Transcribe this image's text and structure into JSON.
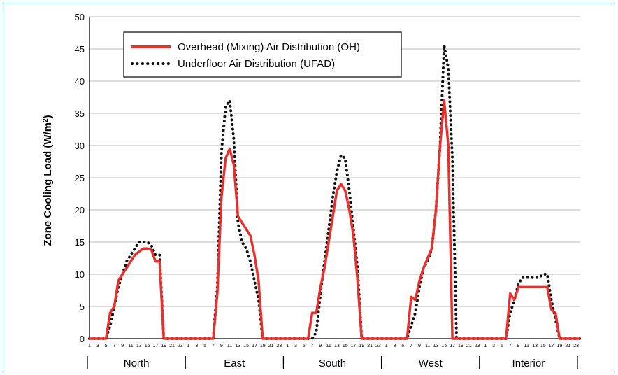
{
  "chart_data": {
    "type": "line",
    "ylabel_main": "Zone Cooling Load (W/m",
    "ylabel_sup": "2",
    "ylabel_end": ")",
    "ylim": [
      0,
      50
    ],
    "yticks": [
      0,
      5,
      10,
      15,
      20,
      25,
      30,
      35,
      40,
      45,
      50
    ],
    "grid": true,
    "legend_position": "top-left",
    "hour_labels": [
      "1",
      "3",
      "5",
      "7",
      "9",
      "11",
      "13",
      "15",
      "17",
      "19",
      "21",
      "23"
    ],
    "zones": [
      "North",
      "East",
      "South",
      "West",
      "Interior"
    ],
    "series": [
      {
        "name": "Overhead (Mixing) Air Distribution (OH)",
        "style": "solid",
        "color": "#e8312f",
        "values": [
          0,
          0,
          0,
          0,
          0,
          4,
          5,
          9,
          10,
          11,
          12,
          13,
          13.5,
          14,
          14,
          13.8,
          12,
          12,
          0,
          0,
          0,
          0,
          0,
          0,
          0,
          0,
          0,
          0,
          0,
          0,
          0,
          7,
          22,
          28,
          29.5,
          27,
          19,
          18,
          17,
          16,
          13,
          9,
          0,
          0,
          0,
          0,
          0,
          0,
          0,
          0,
          0,
          0,
          0,
          0,
          4,
          4,
          8,
          11,
          15,
          19,
          23,
          24,
          23,
          20,
          16,
          9,
          0,
          0,
          0,
          0,
          0,
          0,
          0,
          0,
          0,
          0,
          0,
          0,
          6.5,
          6,
          9,
          11,
          12.5,
          14,
          20,
          30,
          37,
          30,
          0,
          0,
          0,
          0,
          0,
          0,
          0,
          0,
          0,
          0,
          0,
          0,
          0,
          0,
          7,
          6,
          8,
          8,
          8,
          8,
          8,
          8,
          8,
          8,
          4.5,
          4,
          0,
          0,
          0,
          0,
          0,
          0
        ]
      },
      {
        "name": "Underfloor Air Distribution (UFAD)",
        "style": "dotted",
        "color": "#111111",
        "values": [
          0,
          0,
          0,
          0,
          0,
          2,
          5,
          8,
          10,
          12,
          13,
          14,
          15,
          15,
          15,
          14.5,
          13,
          13,
          0,
          0,
          0,
          0,
          0,
          0,
          0,
          0,
          0,
          0,
          0,
          0,
          0,
          8,
          29,
          36,
          37,
          31,
          18,
          15,
          14,
          12,
          9,
          6,
          0,
          0,
          0,
          0,
          0,
          0,
          0,
          0,
          0,
          0,
          0,
          0,
          0,
          1,
          7,
          12,
          17,
          22,
          26,
          28.5,
          28,
          23,
          17,
          11,
          0,
          0,
          0,
          0,
          0,
          0,
          0,
          0,
          0,
          0,
          0,
          0,
          2,
          4,
          8,
          11,
          12,
          14,
          20,
          30,
          45.5,
          42,
          28,
          0,
          0,
          0,
          0,
          0,
          0,
          0,
          0,
          0,
          0,
          0,
          0,
          0,
          4,
          6,
          8.5,
          9.5,
          9.5,
          9.5,
          9.5,
          9.5,
          10,
          10,
          6,
          3,
          0,
          0,
          0,
          0,
          0,
          0
        ]
      }
    ]
  }
}
